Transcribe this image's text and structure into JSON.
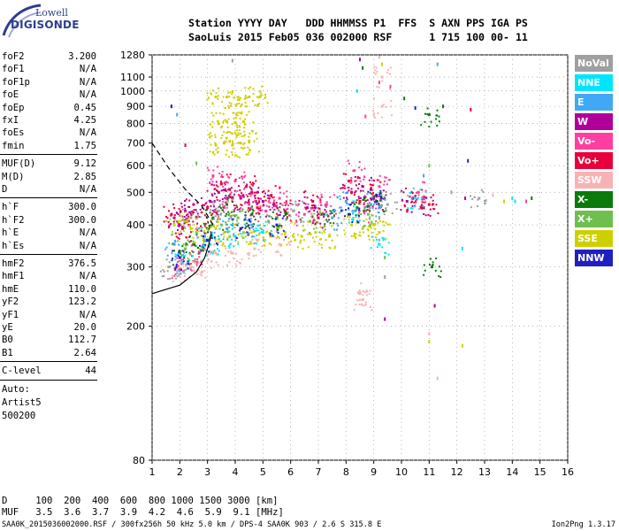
{
  "logo": {
    "top": "Lowell",
    "bottom": "DIGISONDE"
  },
  "header": {
    "line1": "Station YYYY DAY   DDD HHMMSS P1  FFS  S AXN PPS IGA PS",
    "line2": "SaoLuis 2015 Feb05 036 002000 RSF      1 715 100 00- 11"
  },
  "params": {
    "group1": [
      {
        "name": "foF2",
        "value": "3.200"
      },
      {
        "name": "foF1",
        "value": "N/A"
      },
      {
        "name": "foF1p",
        "value": "N/A"
      },
      {
        "name": "foE",
        "value": "N/A"
      },
      {
        "name": "foEp",
        "value": "0.45"
      },
      {
        "name": "fxI",
        "value": "4.25"
      },
      {
        "name": "foEs",
        "value": "N/A"
      },
      {
        "name": "fmin",
        "value": "1.75"
      }
    ],
    "group2": [
      {
        "name": "MUF(D)",
        "value": "9.12"
      },
      {
        "name": "M(D)",
        "value": "2.85"
      },
      {
        "name": "D",
        "value": "N/A"
      }
    ],
    "group3": [
      {
        "name": "h`F",
        "value": "300.0"
      },
      {
        "name": "h`F2",
        "value": "300.0"
      },
      {
        "name": "h`E",
        "value": "N/A"
      },
      {
        "name": "h`Es",
        "value": "N/A"
      }
    ],
    "group4": [
      {
        "name": "hmF2",
        "value": "376.5"
      },
      {
        "name": "hmF1",
        "value": "N/A"
      },
      {
        "name": "hmE",
        "value": "110.0"
      },
      {
        "name": "yF2",
        "value": "123.2"
      },
      {
        "name": "yF1",
        "value": "N/A"
      },
      {
        "name": "yE",
        "value": "20.0"
      },
      {
        "name": "B0",
        "value": "112.7"
      },
      {
        "name": "B1",
        "value": "2.64"
      }
    ],
    "clevel": {
      "name": "C-level",
      "value": "44"
    },
    "auto": [
      "Auto:",
      "Artist5",
      "500200"
    ]
  },
  "legend": [
    {
      "label": "NoVal",
      "color": "#a0a0a0"
    },
    {
      "label": "NNE",
      "color": "#00e5ff"
    },
    {
      "label": "E",
      "color": "#3fa9f5"
    },
    {
      "label": "W",
      "color": "#b0009a"
    },
    {
      "label": "Vo-",
      "color": "#ff3fa0"
    },
    {
      "label": "Vo+",
      "color": "#e8003a"
    },
    {
      "label": "SSW",
      "color": "#f7b3b3"
    },
    {
      "label": "X-",
      "color": "#0a7a0a"
    },
    {
      "label": "X+",
      "color": "#6fbf4f"
    },
    {
      "label": "SSE",
      "color": "#cfcf00"
    },
    {
      "label": "NNW",
      "color": "#2020c0"
    }
  ],
  "conversion": {
    "d_line": "D     100  200  400  600  800 1000 1500 3000 [km]",
    "muf_line": "MUF   3.5  3.6  3.7  3.9  4.2  4.6  5.9  9.1 [MHz]"
  },
  "footer": {
    "left": "SAA0K_2015036002000.RSF / 300fx256h 50 kHz 5.0 km / DPS-4 SAA0K 903 / 2.6 S 315.8 E",
    "right": "Ion2Png 1.3.17"
  },
  "chart_data": {
    "type": "scatter",
    "title": "",
    "xlabel": "",
    "ylabel": "",
    "xlim": [
      1,
      16
    ],
    "ylim": [
      80,
      1280
    ],
    "yscale": "log",
    "x_ticks": [
      1,
      2,
      3,
      4,
      5,
      6,
      7,
      8,
      9,
      10,
      11,
      12,
      13,
      14,
      15,
      16
    ],
    "y_ticks": [
      80,
      200,
      300,
      400,
      500,
      600,
      700,
      800,
      900,
      1000,
      1100,
      1280
    ],
    "grid": true,
    "legend_position": "right",
    "series": [
      {
        "name": "W",
        "color": "#b0009a",
        "points": [
          [
            1.8,
            420
          ],
          [
            2.0,
            400
          ],
          [
            2.2,
            440
          ],
          [
            2.5,
            460
          ],
          [
            3.1,
            470
          ],
          [
            3.4,
            500
          ],
          [
            3.8,
            510
          ],
          [
            4.2,
            480
          ],
          [
            4.6,
            500
          ],
          [
            5.0,
            470
          ],
          [
            5.4,
            460
          ],
          [
            6.6,
            450
          ],
          [
            7.1,
            430
          ],
          [
            8.2,
            500
          ],
          [
            8.6,
            520
          ],
          [
            9.0,
            480
          ],
          [
            10.2,
            470
          ],
          [
            10.8,
            450
          ]
        ]
      },
      {
        "name": "Vo+",
        "color": "#e8003a",
        "points": [
          [
            1.7,
            430
          ],
          [
            2.1,
            390
          ],
          [
            2.6,
            420
          ],
          [
            3.0,
            450
          ],
          [
            3.5,
            530
          ],
          [
            3.9,
            480
          ],
          [
            4.4,
            520
          ],
          [
            4.8,
            450
          ],
          [
            5.3,
            490
          ],
          [
            5.8,
            440
          ],
          [
            6.8,
            470
          ],
          [
            7.0,
            420
          ],
          [
            8.1,
            540
          ],
          [
            8.5,
            470
          ],
          [
            8.9,
            510
          ],
          [
            10.4,
            480
          ],
          [
            11.0,
            460
          ]
        ]
      },
      {
        "name": "Vo-",
        "color": "#ff3fa0",
        "points": [
          [
            1.9,
            300
          ],
          [
            2.3,
            310
          ],
          [
            2.7,
            330
          ],
          [
            3.2,
            560
          ],
          [
            3.6,
            450
          ],
          [
            4.0,
            540
          ],
          [
            4.5,
            460
          ],
          [
            5.1,
            440
          ],
          [
            5.6,
            480
          ],
          [
            6.5,
            430
          ],
          [
            7.3,
            460
          ],
          [
            8.3,
            580
          ],
          [
            8.7,
            440
          ],
          [
            9.2,
            520
          ],
          [
            10.6,
            500
          ]
        ]
      },
      {
        "name": "SSE",
        "color": "#cfcf00",
        "points": [
          [
            1.8,
            400
          ],
          [
            2.2,
            410
          ],
          [
            2.6,
            380
          ],
          [
            3.0,
            390
          ],
          [
            3.3,
            690
          ],
          [
            3.6,
            700
          ],
          [
            3.9,
            690
          ],
          [
            4.2,
            700
          ],
          [
            4.5,
            710
          ],
          [
            3.4,
            800
          ],
          [
            3.7,
            810
          ],
          [
            4.0,
            805
          ],
          [
            4.3,
            810
          ],
          [
            3.3,
            960
          ],
          [
            3.7,
            960
          ],
          [
            4.1,
            958
          ],
          [
            4.5,
            960
          ],
          [
            4.9,
            962
          ],
          [
            3.3,
            390
          ],
          [
            3.8,
            370
          ],
          [
            4.3,
            380
          ],
          [
            4.8,
            360
          ],
          [
            5.3,
            370
          ],
          [
            5.8,
            380
          ],
          [
            6.4,
            370
          ],
          [
            6.9,
            380
          ],
          [
            7.4,
            370
          ],
          [
            8.2,
            400
          ],
          [
            8.6,
            390
          ],
          [
            9.0,
            400
          ],
          [
            9.2,
            380
          ]
        ]
      },
      {
        "name": "X-",
        "color": "#0a7a0a",
        "points": [
          [
            2.0,
            330
          ],
          [
            2.5,
            350
          ],
          [
            3.2,
            420
          ],
          [
            3.7,
            460
          ],
          [
            4.6,
            430
          ],
          [
            5.5,
            420
          ],
          [
            7.2,
            430
          ],
          [
            8.4,
            450
          ],
          [
            9.1,
            470
          ],
          [
            11.1,
            300
          ],
          [
            11.0,
            850
          ]
        ]
      },
      {
        "name": "X+",
        "color": "#6fbf4f",
        "points": [
          [
            2.2,
            340
          ],
          [
            2.9,
            360
          ],
          [
            3.5,
            400
          ],
          [
            4.1,
            420
          ],
          [
            5.2,
            410
          ],
          [
            6.7,
            410
          ],
          [
            8.8,
            430
          ]
        ]
      },
      {
        "name": "SSW",
        "color": "#f7b3b3",
        "points": [
          [
            1.9,
            290
          ],
          [
            2.4,
            300
          ],
          [
            2.8,
            290
          ],
          [
            3.3,
            330
          ],
          [
            3.9,
            330
          ],
          [
            4.7,
            340
          ],
          [
            5.6,
            350
          ],
          [
            8.5,
            250
          ],
          [
            8.6,
            240
          ],
          [
            9.3,
            900
          ],
          [
            9.3,
            1100
          ]
        ]
      },
      {
        "name": "NNE",
        "color": "#00e5ff",
        "points": [
          [
            2.1,
            310
          ],
          [
            3.1,
            350
          ],
          [
            4.0,
            370
          ],
          [
            5.0,
            380
          ],
          [
            8.3,
            440
          ],
          [
            9.2,
            350
          ],
          [
            10.5,
            480
          ]
        ]
      },
      {
        "name": "E",
        "color": "#3fa9f5",
        "points": [
          [
            1.8,
            350
          ],
          [
            2.9,
            370
          ],
          [
            3.7,
            390
          ],
          [
            4.6,
            400
          ],
          [
            7.5,
            420
          ],
          [
            8.0,
            470
          ],
          [
            8.9,
            460
          ]
        ]
      },
      {
        "name": "NNW",
        "color": "#2020c0",
        "points": [
          [
            2.0,
            320
          ],
          [
            3.0,
            360
          ],
          [
            4.2,
            390
          ],
          [
            5.5,
            400
          ],
          [
            8.1,
            430
          ],
          [
            9.1,
            490
          ]
        ]
      },
      {
        "name": "NoVal",
        "color": "#a0a0a0",
        "points": [
          [
            1.6,
            300
          ],
          [
            2.4,
            420
          ],
          [
            3.4,
            440
          ],
          [
            6.1,
            440
          ],
          [
            9.5,
            460
          ],
          [
            12.8,
            480
          ]
        ]
      }
    ],
    "sparse_points": [
      [
        3.9,
        1230
      ],
      [
        8.5,
        1240
      ],
      [
        9.2,
        1260
      ],
      [
        9.3,
        1200
      ],
      [
        8.4,
        1000
      ],
      [
        9.2,
        1060
      ],
      [
        11.5,
        900
      ],
      [
        10.5,
        890
      ],
      [
        11.3,
        1200
      ],
      [
        12.5,
        880
      ],
      [
        11.0,
        600
      ],
      [
        11.8,
        500
      ],
      [
        12.3,
        480
      ],
      [
        13.3,
        490
      ],
      [
        13.7,
        470
      ],
      [
        14.1,
        470
      ],
      [
        14.5,
        470
      ],
      [
        14.7,
        480
      ],
      [
        12.4,
        620
      ],
      [
        10.8,
        560
      ],
      [
        10.2,
        440
      ],
      [
        9.4,
        320
      ],
      [
        9.4,
        280
      ],
      [
        9.4,
        210
      ],
      [
        11.0,
        190
      ],
      [
        11.0,
        180
      ],
      [
        12.2,
        340
      ],
      [
        8.7,
        840
      ],
      [
        8.6,
        1170
      ],
      [
        1.7,
        900
      ],
      [
        1.9,
        850
      ],
      [
        2.2,
        690
      ],
      [
        2.6,
        610
      ],
      [
        9.2,
        420
      ],
      [
        11.2,
        230
      ],
      [
        11.3,
        140
      ],
      [
        12.2,
        175
      ],
      [
        14.0,
        480
      ],
      [
        9.6,
        1030
      ],
      [
        10.1,
        950
      ]
    ],
    "ne_profile": {
      "description_free": true,
      "solid": [
        [
          1.0,
          250
        ],
        [
          2.0,
          265
        ],
        [
          2.6,
          290
        ],
        [
          2.9,
          320
        ],
        [
          3.05,
          350
        ],
        [
          3.13,
          376.5
        ]
      ],
      "dashed": [
        [
          1.0,
          700
        ],
        [
          1.6,
          590
        ],
        [
          2.2,
          510
        ],
        [
          2.8,
          455
        ],
        [
          3.2,
          400
        ]
      ],
      "small_dashed": [
        [
          3.13,
          376.5
        ],
        [
          3.05,
          400
        ],
        [
          2.95,
          425
        ]
      ]
    }
  }
}
